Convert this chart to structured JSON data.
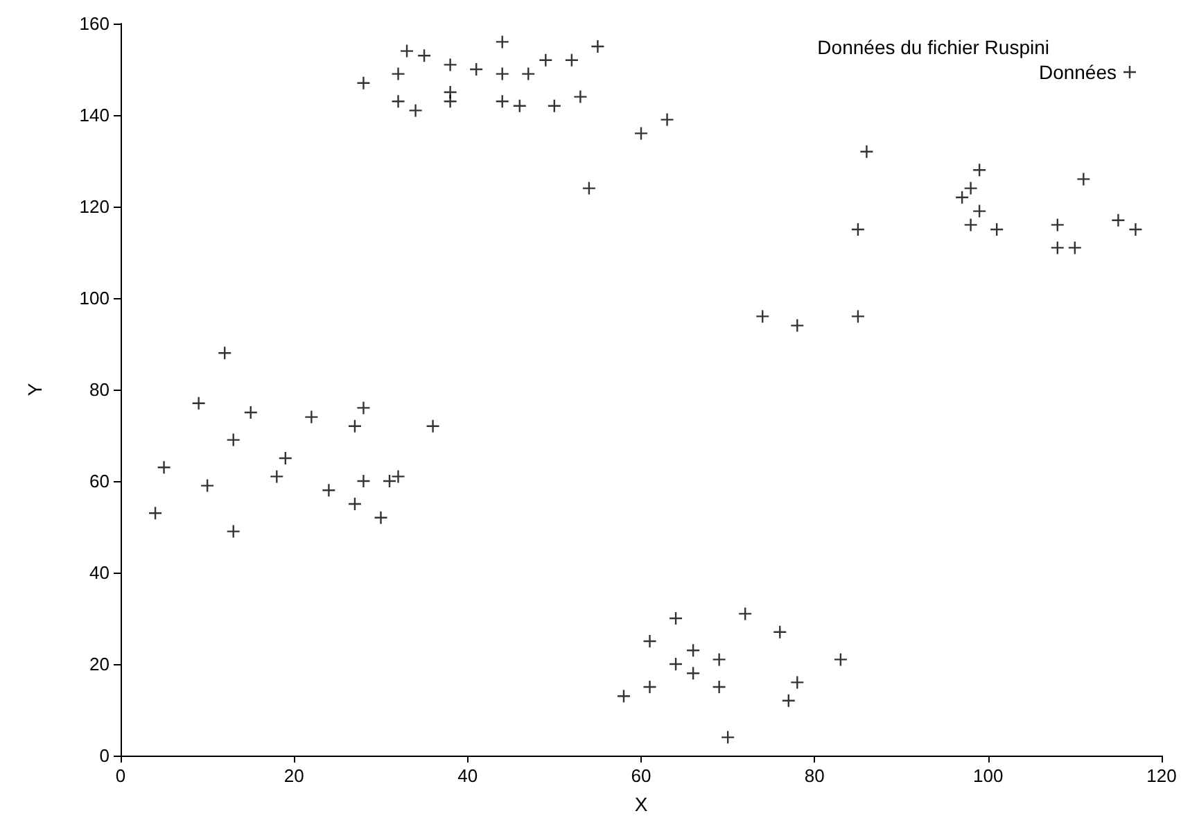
{
  "chart_data": {
    "type": "scatter",
    "legend_title": "Données du fichier Ruspini",
    "xlabel": "X",
    "ylabel": "Y",
    "xlim": [
      0,
      120
    ],
    "xticks": [
      0,
      20,
      40,
      60,
      80,
      100,
      120
    ],
    "ylim": [
      0,
      160
    ],
    "yticks": [
      0,
      20,
      40,
      60,
      80,
      100,
      120,
      140,
      160
    ],
    "legend": "top right",
    "marker": "cross",
    "series": [
      {
        "name": "Données",
        "color": "#000000",
        "x": [
          4,
          5,
          10,
          9,
          13,
          13,
          12,
          15,
          18,
          19,
          22,
          27,
          28,
          24,
          27,
          28,
          30,
          31,
          32,
          36,
          28,
          32,
          35,
          33,
          38,
          41,
          38,
          38,
          32,
          34,
          44,
          44,
          44,
          46,
          47,
          49,
          50,
          53,
          52,
          55,
          54,
          60,
          63,
          86,
          85,
          85,
          78,
          74,
          97,
          98,
          98,
          99,
          99,
          101,
          108,
          110,
          108,
          111,
          115,
          117,
          70,
          77,
          83,
          61,
          69,
          78,
          66,
          58,
          64,
          69,
          66,
          61,
          76,
          72,
          64
        ],
        "values": [
          53,
          63,
          59,
          77,
          49,
          69,
          88,
          75,
          61,
          65,
          74,
          72,
          76,
          58,
          55,
          60,
          52,
          60,
          61,
          72,
          147,
          149,
          153,
          154,
          151,
          150,
          145,
          143,
          143,
          141,
          156,
          149,
          143,
          142,
          149,
          152,
          142,
          144,
          152,
          155,
          124,
          136,
          139,
          132,
          115,
          96,
          94,
          96,
          122,
          116,
          124,
          119,
          128,
          115,
          111,
          111,
          116,
          126,
          117,
          115,
          4,
          12,
          21,
          15,
          15,
          16,
          18,
          13,
          20,
          21,
          23,
          25,
          27,
          31,
          30
        ]
      }
    ]
  }
}
